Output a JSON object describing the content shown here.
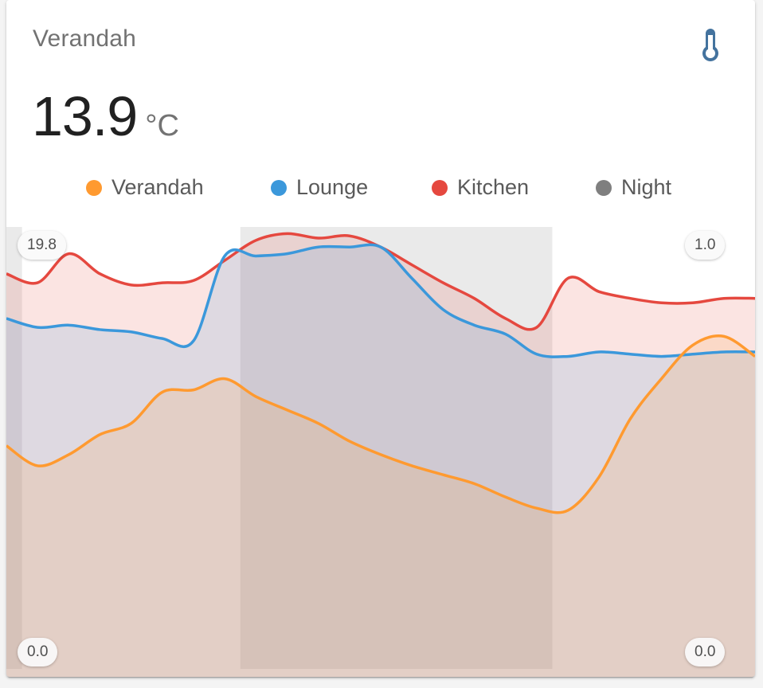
{
  "card": {
    "title": "Verandah",
    "state": "13.9",
    "unit": "°C",
    "icon": "thermometer-icon",
    "icon_color": "#44739e"
  },
  "legend": [
    {
      "label": "Verandah",
      "color": "#ff9a30"
    },
    {
      "label": "Lounge",
      "color": "#3b98db"
    },
    {
      "label": "Kitchen",
      "color": "#e5483f"
    },
    {
      "label": "Night",
      "color": "#7f7f7f"
    }
  ],
  "bounds": {
    "primary_max": "19.8",
    "primary_min": "0.0",
    "secondary_max": "1.0",
    "secondary_min": "0.0"
  },
  "chart_data": {
    "type": "line",
    "title": "Verandah",
    "xlabel": "",
    "ylabel": "°C",
    "ylim": [
      0,
      19.8
    ],
    "y2lim": [
      0,
      1.0
    ],
    "grid": false,
    "legend_position": "top",
    "x": [
      0,
      1,
      2,
      3,
      4,
      5,
      6,
      7,
      8,
      9,
      10,
      11,
      12,
      13,
      14,
      15,
      16,
      17,
      18,
      19,
      20,
      21,
      22,
      23,
      24
    ],
    "series": [
      {
        "name": "Verandah",
        "color": "#ff9a30",
        "axis": "primary",
        "values": [
          10.0,
          9.1,
          9.6,
          10.5,
          11.0,
          12.4,
          12.5,
          13.0,
          12.2,
          11.6,
          11.0,
          10.2,
          9.6,
          9.1,
          8.7,
          8.3,
          7.7,
          7.2,
          7.1,
          8.6,
          11.2,
          13.0,
          14.5,
          14.9,
          14.0
        ]
      },
      {
        "name": "Lounge",
        "color": "#3b98db",
        "axis": "primary",
        "values": [
          15.7,
          15.3,
          15.4,
          15.2,
          15.1,
          14.8,
          14.7,
          18.5,
          18.5,
          18.6,
          18.9,
          18.9,
          18.9,
          17.5,
          16.1,
          15.4,
          15.0,
          14.1,
          14.0,
          14.2,
          14.1,
          14.0,
          14.1,
          14.2,
          14.2
        ]
      },
      {
        "name": "Kitchen",
        "color": "#e5483f",
        "axis": "primary",
        "values": [
          17.7,
          17.3,
          18.6,
          17.7,
          17.2,
          17.3,
          17.4,
          18.3,
          19.2,
          19.5,
          19.3,
          19.4,
          18.9,
          18.1,
          17.3,
          16.6,
          15.7,
          15.3,
          17.5,
          16.9,
          16.6,
          16.4,
          16.4,
          16.6,
          16.6
        ]
      },
      {
        "name": "Night",
        "color": "#7f7f7f",
        "axis": "secondary",
        "values": [
          1,
          0,
          0,
          0,
          0,
          0,
          0,
          0,
          1,
          1,
          1,
          1,
          1,
          1,
          1,
          1,
          1,
          1,
          0,
          0,
          0,
          0,
          0,
          0,
          0
        ]
      }
    ]
  }
}
